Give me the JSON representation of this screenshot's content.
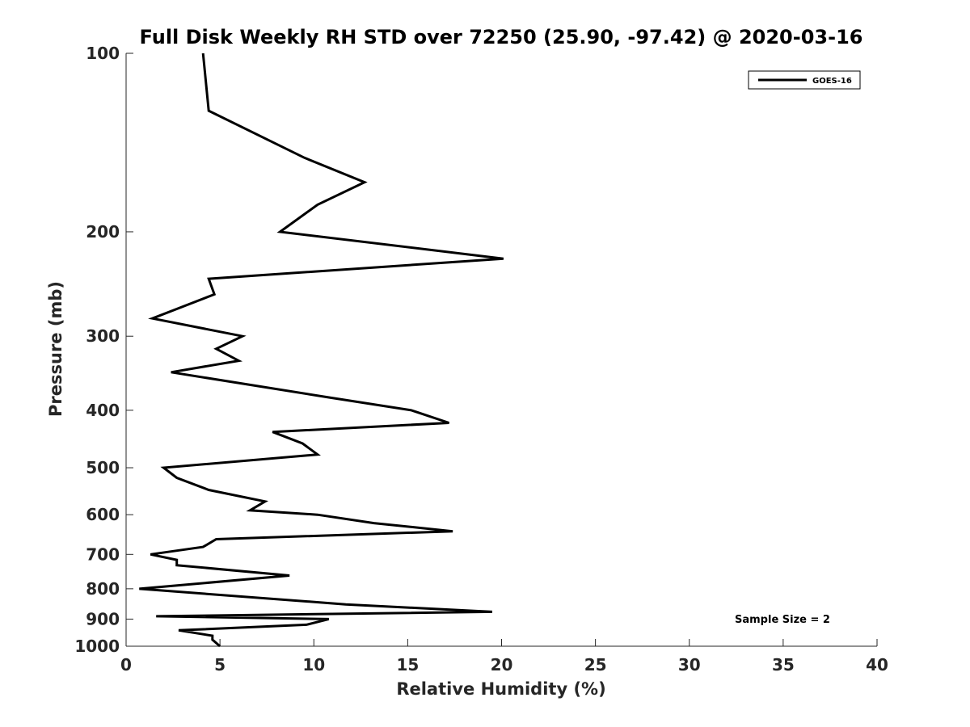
{
  "chart_data": {
    "type": "line",
    "title": "Full Disk Weekly RH STD over 72250 (25.90, -97.42) @ 2020-03-16",
    "xlabel": "Relative Humidity (%)",
    "ylabel": "Pressure (mb)",
    "xlim": [
      0,
      40
    ],
    "ylim": [
      100,
      1000
    ],
    "yscale": "log",
    "y_reversed": true,
    "x_ticks": [
      0,
      5,
      10,
      15,
      20,
      25,
      30,
      35,
      40
    ],
    "x_tick_labels": [
      "0",
      "5",
      "10",
      "15",
      "20",
      "25",
      "30",
      "35",
      "40"
    ],
    "y_ticks": [
      100,
      200,
      300,
      400,
      500,
      600,
      700,
      800,
      900,
      1000
    ],
    "y_tick_labels": [
      "100",
      "200",
      "300",
      "400",
      "500",
      "600",
      "700",
      "800",
      "900",
      "1000"
    ],
    "grid": false,
    "legend_position": "top-right",
    "series": [
      {
        "name": "GOES-16",
        "color": "#000000",
        "x": [
          4.1,
          4.4,
          9.5,
          12.7,
          10.2,
          8.2,
          20.1,
          4.4,
          4.7,
          1.4,
          6.2,
          4.8,
          6.0,
          2.4,
          10.7,
          15.2,
          17.2,
          7.8,
          9.4,
          10.2,
          2.0,
          2.7,
          4.4,
          7.4,
          6.6,
          10.2,
          13.2,
          17.4,
          4.8,
          4.1,
          1.3,
          2.7,
          2.7,
          8.7,
          0.7,
          11.7,
          19.5,
          1.6,
          10.8,
          9.6,
          2.8,
          4.6,
          4.6,
          5.0
        ],
        "y": [
          100,
          125,
          150,
          165,
          180,
          200,
          222,
          240,
          255,
          280,
          300,
          315,
          330,
          345,
          380,
          400,
          420,
          435,
          455,
          475,
          500,
          520,
          545,
          570,
          590,
          600,
          620,
          640,
          660,
          680,
          700,
          715,
          730,
          760,
          800,
          850,
          875,
          890,
          900,
          920,
          940,
          960,
          975,
          1000
        ]
      }
    ],
    "annotations": [
      "Sample Size = 2"
    ]
  }
}
